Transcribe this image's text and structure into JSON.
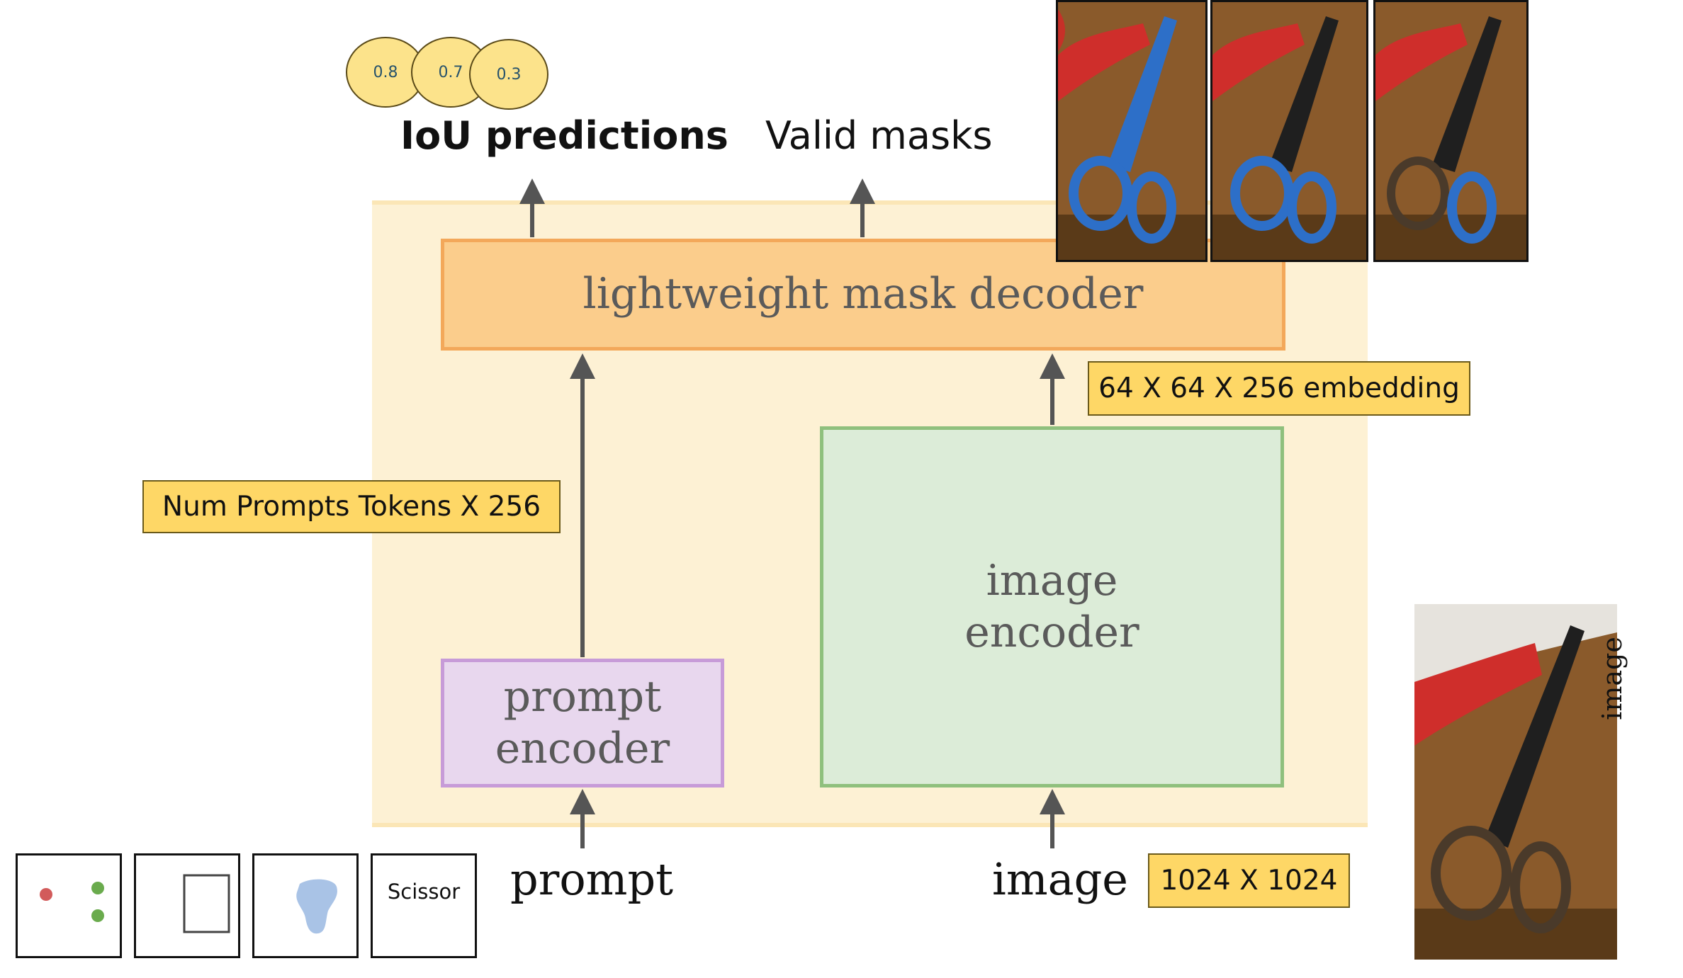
{
  "outputs": {
    "iou_label": "IoU predictions",
    "valid_label": "Valid masks",
    "iou_scores": [
      "0.8",
      "0.7",
      "0.3"
    ]
  },
  "blocks": {
    "decoder": "lightweight mask decoder",
    "prompt_encoder": [
      "prompt",
      "encoder"
    ],
    "image_encoder": [
      "image",
      "encoder"
    ]
  },
  "tags": {
    "tokens": "Num Prompts Tokens X 256",
    "embedding": "64 X 64 X 256 embedding",
    "resolution": "1024 X 1024"
  },
  "inputs": {
    "prompt_label": "prompt",
    "image_label": "image",
    "prompt_types": [
      "points",
      "box",
      "mask",
      "text"
    ],
    "text_prompt": "Scissor",
    "side_label": "image"
  },
  "colors": {
    "region_fill": "#fdf1d4",
    "decoder_fill": "#fbcd8c",
    "prompt_encoder_fill": "#e8d7ee",
    "image_encoder_fill": "#dcecd8",
    "tag_fill": "#fed766",
    "iou_circle_fill": "#fce38b",
    "mask_highlight": "#3a7fd0"
  }
}
